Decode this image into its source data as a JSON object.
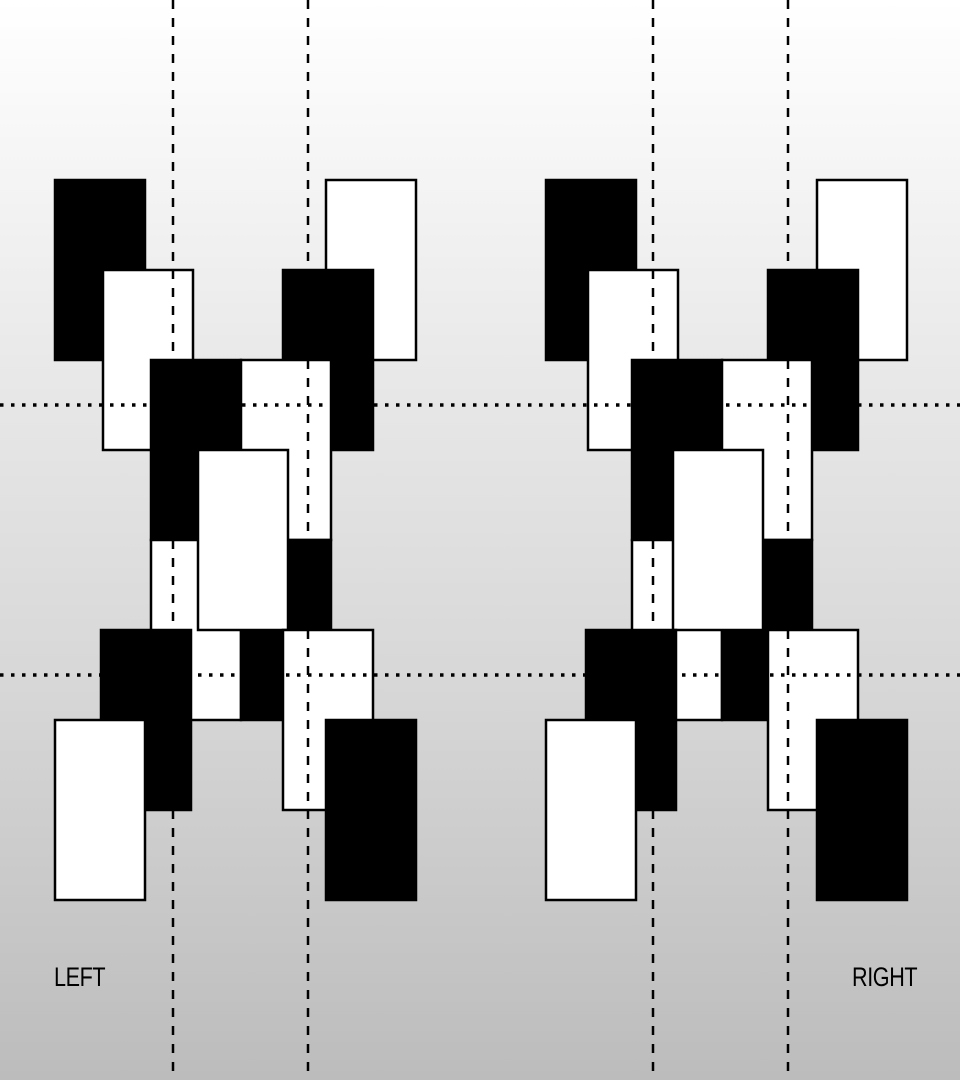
{
  "labels": {
    "left": "LEFT",
    "right": "RIGHT"
  },
  "colors": {
    "dark": "#000000",
    "light": "#ffffff",
    "stroke": "#000000"
  }
}
